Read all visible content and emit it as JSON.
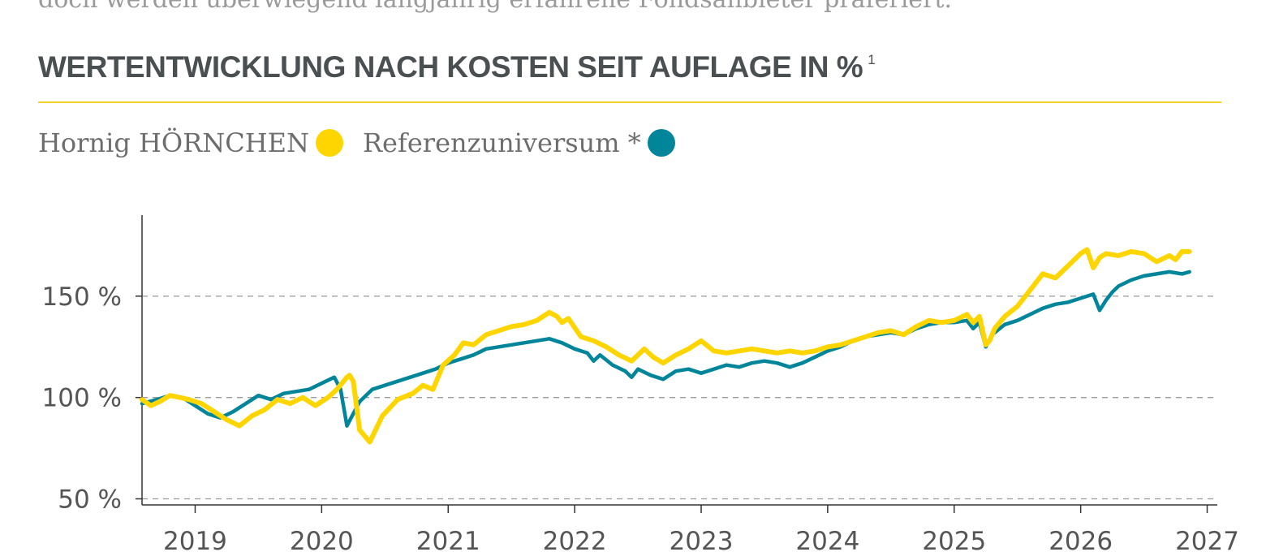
{
  "page": {
    "intro_text": "doch werden überwiegend langjährig erfahrene Fondsanbieter präferiert.",
    "title": "WERTENTWICKLUNG NACH KOSTEN SEIT AUFLAGE IN %",
    "title_footnote": "1"
  },
  "legend": [
    {
      "label": "Hornig HÖRNCHEN",
      "color": "#ffd500"
    },
    {
      "label": "Referenzuniversum *",
      "color": "#00859b"
    }
  ],
  "chart_data": {
    "type": "line",
    "title": "WERTENTWICKLUNG NACH KOSTEN SEIT AUFLAGE IN %",
    "xlabel": "",
    "ylabel": "",
    "xlim": [
      2018.58,
      2027.08
    ],
    "ylim": [
      47,
      190
    ],
    "y_ticks": [
      50,
      100,
      150
    ],
    "y_tick_labels": [
      "50 %",
      "100 %",
      "150 %"
    ],
    "x_ticks": [
      2019,
      2020,
      2021,
      2022,
      2023,
      2024,
      2025,
      2026,
      2027
    ],
    "x_tick_labels": [
      "2019",
      "2020",
      "2021",
      "2022",
      "2023",
      "2024",
      "2025",
      "2026",
      "2027"
    ],
    "grid": "horizontal dashed at y-ticks",
    "legend_position": "top-left",
    "series": [
      {
        "name": "Hornig HÖRNCHEN",
        "color": "#ffd500",
        "x": [
          2018.58,
          2018.65,
          2018.72,
          2018.8,
          2018.88,
          2018.95,
          2019.05,
          2019.15,
          2019.25,
          2019.35,
          2019.45,
          2019.55,
          2019.65,
          2019.75,
          2019.85,
          2019.95,
          2020.05,
          2020.12,
          2020.16,
          2020.2,
          2020.22,
          2020.25,
          2020.3,
          2020.38,
          2020.48,
          2020.6,
          2020.72,
          2020.8,
          2020.88,
          2020.96,
          2021.05,
          2021.12,
          2021.2,
          2021.3,
          2021.4,
          2021.5,
          2021.6,
          2021.7,
          2021.8,
          2021.86,
          2021.9,
          2021.95,
          2022.05,
          2022.15,
          2022.25,
          2022.35,
          2022.45,
          2022.55,
          2022.62,
          2022.7,
          2022.8,
          2022.9,
          2023.0,
          2023.1,
          2023.2,
          2023.3,
          2023.4,
          2023.5,
          2023.6,
          2023.7,
          2023.8,
          2023.9,
          2024.0,
          2024.1,
          2024.2,
          2024.3,
          2024.4,
          2024.5,
          2024.6,
          2024.7,
          2024.8,
          2024.9,
          2025.0,
          2025.1,
          2025.15,
          2025.2,
          2025.25,
          2025.28,
          2025.32,
          2025.4,
          2025.5,
          2025.6,
          2025.7,
          2025.8,
          2025.9,
          2026.0,
          2026.05,
          2026.1,
          2026.15,
          2026.2,
          2026.3,
          2026.4,
          2026.5,
          2026.6,
          2026.7,
          2026.75,
          2026.8,
          2026.86
        ],
        "y": [
          99,
          96,
          98,
          101,
          100,
          99,
          97,
          93,
          89,
          86,
          91,
          94,
          99,
          97,
          100,
          96,
          100,
          104,
          107,
          110,
          111,
          108,
          84,
          78,
          91,
          99,
          102,
          106,
          104,
          116,
          121,
          127,
          126,
          131,
          133,
          135,
          136,
          138,
          142,
          140,
          137,
          139,
          130,
          128,
          125,
          121,
          118,
          124,
          120,
          117,
          121,
          124,
          128,
          123,
          122,
          123,
          124,
          123,
          122,
          123,
          122,
          123,
          125,
          126,
          128,
          130,
          132,
          133,
          131,
          135,
          138,
          137,
          138,
          141,
          137,
          140,
          126,
          128,
          134,
          140,
          145,
          153,
          161,
          159,
          165,
          171,
          173,
          164,
          169,
          171,
          170,
          172,
          171,
          167,
          170,
          168,
          172,
          172
        ]
      },
      {
        "name": "Referenzuniversum *",
        "color": "#00859b",
        "x": [
          2018.58,
          2018.7,
          2018.8,
          2018.9,
          2019.0,
          2019.1,
          2019.2,
          2019.3,
          2019.4,
          2019.5,
          2019.6,
          2019.7,
          2019.8,
          2019.9,
          2020.0,
          2020.1,
          2020.15,
          2020.2,
          2020.25,
          2020.3,
          2020.35,
          2020.4,
          2020.5,
          2020.6,
          2020.7,
          2020.8,
          2020.9,
          2021.0,
          2021.1,
          2021.2,
          2021.3,
          2021.4,
          2021.5,
          2021.6,
          2021.7,
          2021.8,
          2021.9,
          2022.0,
          2022.1,
          2022.15,
          2022.2,
          2022.3,
          2022.4,
          2022.45,
          2022.5,
          2022.6,
          2022.7,
          2022.8,
          2022.9,
          2023.0,
          2023.1,
          2023.2,
          2023.3,
          2023.4,
          2023.5,
          2023.6,
          2023.7,
          2023.8,
          2023.9,
          2024.0,
          2024.1,
          2024.2,
          2024.3,
          2024.4,
          2024.5,
          2024.6,
          2024.7,
          2024.8,
          2024.9,
          2025.0,
          2025.1,
          2025.15,
          2025.2,
          2025.25,
          2025.3,
          2025.4,
          2025.5,
          2025.6,
          2025.7,
          2025.8,
          2025.9,
          2026.0,
          2026.1,
          2026.15,
          2026.2,
          2026.25,
          2026.3,
          2026.4,
          2026.5,
          2026.6,
          2026.7,
          2026.8,
          2026.86
        ],
        "y": [
          97,
          99,
          101,
          100,
          96,
          92,
          90,
          93,
          97,
          101,
          99,
          102,
          103,
          104,
          107,
          110,
          104,
          86,
          92,
          98,
          101,
          104,
          106,
          108,
          110,
          112,
          114,
          117,
          119,
          121,
          124,
          125,
          126,
          127,
          128,
          129,
          127,
          124,
          122,
          118,
          121,
          116,
          113,
          110,
          114,
          111,
          109,
          113,
          114,
          112,
          114,
          116,
          115,
          117,
          118,
          117,
          115,
          117,
          120,
          123,
          125,
          128,
          130,
          131,
          132,
          131,
          134,
          136,
          137,
          137,
          138,
          134,
          137,
          125,
          131,
          136,
          138,
          141,
          144,
          146,
          147,
          149,
          151,
          143,
          148,
          152,
          155,
          158,
          160,
          161,
          162,
          161,
          162
        ]
      }
    ]
  }
}
